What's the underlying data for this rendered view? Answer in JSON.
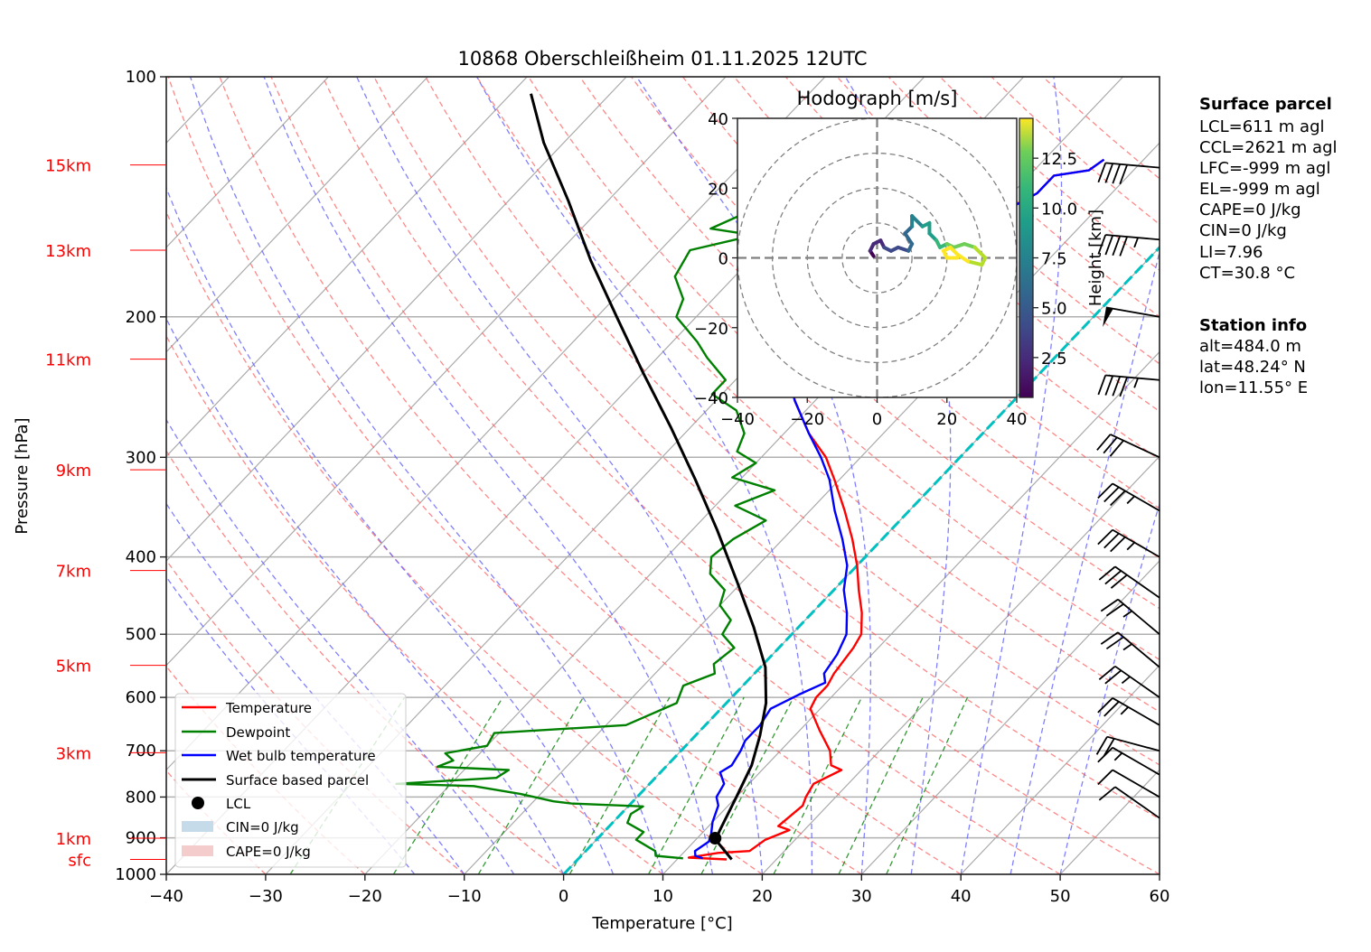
{
  "chart_data": {
    "type": "line",
    "subtype": "skew-t log-p",
    "title": "10868 Oberschleißheim 01.11.2025 12UTC",
    "xlabel": "Temperature [°C]",
    "ylabel": "Pressure [hPa]",
    "xlim": [
      -40,
      60
    ],
    "ylim": [
      1000,
      100
    ],
    "x_ticks": [
      "−40",
      "−30",
      "−20",
      "−10",
      "0",
      "10",
      "20",
      "30",
      "40",
      "50",
      "60"
    ],
    "y_ticks": [
      "100",
      "200",
      "300",
      "400",
      "500",
      "600",
      "700",
      "800",
      "900",
      "1000"
    ],
    "y_tick_values": [
      100,
      200,
      300,
      400,
      500,
      600,
      700,
      800,
      900,
      1000
    ],
    "height_labels": [
      {
        "label": "15km",
        "p": 129
      },
      {
        "label": "13km",
        "p": 165
      },
      {
        "label": "11km",
        "p": 226
      },
      {
        "label": "9km",
        "p": 311
      },
      {
        "label": "7km",
        "p": 416
      },
      {
        "label": "5km",
        "p": 547
      },
      {
        "label": "3km",
        "p": 704
      },
      {
        "label": "1km",
        "p": 901
      },
      {
        "label": "sfc",
        "p": 958
      }
    ],
    "grid": true,
    "series": [
      {
        "name": "Temperature",
        "color": "#ff0000",
        "points": [
          [
            15.0,
            958
          ],
          [
            11.0,
            953
          ],
          [
            13.5,
            940
          ],
          [
            16.5,
            935
          ],
          [
            17.0,
            905
          ],
          [
            18.5,
            880
          ],
          [
            17.0,
            870
          ],
          [
            17.5,
            820
          ],
          [
            17.0,
            800
          ],
          [
            16.5,
            770
          ],
          [
            18.0,
            740
          ],
          [
            16.5,
            730
          ],
          [
            15.0,
            700
          ],
          [
            12.0,
            660
          ],
          [
            9.0,
            620
          ],
          [
            8.5,
            600
          ],
          [
            8.5,
            580
          ],
          [
            8.0,
            560
          ],
          [
            7.5,
            520
          ],
          [
            7.0,
            500
          ],
          [
            5.0,
            470
          ],
          [
            2.5,
            440
          ],
          [
            0.0,
            410
          ],
          [
            -3.0,
            380
          ],
          [
            -6.5,
            350
          ],
          [
            -10.5,
            320
          ],
          [
            -13.5,
            300
          ],
          [
            -17.5,
            280
          ],
          [
            -22,
            255
          ],
          [
            -25.5,
            235
          ],
          [
            -29,
            215
          ],
          [
            -31.5,
            200
          ],
          [
            -35,
            183
          ],
          [
            -37,
            170
          ],
          [
            -33.5,
            163
          ],
          [
            -27.5,
            160
          ],
          [
            -23.5,
            153
          ],
          [
            -19,
            147
          ],
          [
            -17.5,
            140
          ],
          [
            -17.5,
            133
          ],
          [
            -14.5,
            131
          ],
          [
            -14,
            127
          ]
        ]
      },
      {
        "name": "Dewpoint",
        "color": "#008000",
        "points": [
          [
            10.5,
            955
          ],
          [
            7.5,
            948
          ],
          [
            7.0,
            935
          ],
          [
            6.0,
            925
          ],
          [
            4.0,
            905
          ],
          [
            4.0,
            885
          ],
          [
            1.5,
            862
          ],
          [
            1.0,
            840
          ],
          [
            1.5,
            822
          ],
          [
            -6,
            815
          ],
          [
            -8,
            810
          ],
          [
            -12,
            793
          ],
          [
            -17.5,
            775
          ],
          [
            -25.5,
            770
          ],
          [
            -16,
            757
          ],
          [
            -15.5,
            740
          ],
          [
            -23,
            733
          ],
          [
            -22,
            720
          ],
          [
            -23.5,
            705
          ],
          [
            -20,
            690
          ],
          [
            -20.5,
            665
          ],
          [
            -8,
            650
          ],
          [
            -5,
            610
          ],
          [
            -6,
            580
          ],
          [
            -4,
            560
          ],
          [
            -5,
            545
          ],
          [
            -4.5,
            520
          ],
          [
            -7,
            500
          ],
          [
            -7.5,
            480
          ],
          [
            -10,
            460
          ],
          [
            -11,
            440
          ],
          [
            -14,
            420
          ],
          [
            -15.5,
            400
          ],
          [
            -15,
            380
          ],
          [
            -13.5,
            360
          ],
          [
            -18,
            345
          ],
          [
            -15.5,
            330
          ],
          [
            -21,
            318
          ],
          [
            -20,
            305
          ],
          [
            -23,
            295
          ],
          [
            -24,
            280
          ],
          [
            -27,
            262
          ],
          [
            -31,
            250
          ],
          [
            -31,
            240
          ],
          [
            -35,
            225
          ],
          [
            -37.5,
            215
          ],
          [
            -42,
            200
          ],
          [
            -43,
            190
          ],
          [
            -46,
            178
          ],
          [
            -47,
            165
          ],
          [
            -42,
            158
          ],
          [
            -47,
            155
          ],
          [
            -44,
            145
          ],
          [
            -43,
            138
          ],
          [
            -41,
            132
          ],
          [
            -40,
            128
          ]
        ]
      },
      {
        "name": "Wet bulb temperature",
        "color": "#0000ff",
        "points": [
          [
            12.5,
            955
          ],
          [
            11.5,
            948
          ],
          [
            11.0,
            935
          ],
          [
            11.5,
            910
          ],
          [
            11.0,
            890
          ],
          [
            10.0,
            860
          ],
          [
            9.0,
            820
          ],
          [
            8.0,
            800
          ],
          [
            7.5,
            770
          ],
          [
            6.0,
            745
          ],
          [
            6.5,
            730
          ],
          [
            6.0,
            700
          ],
          [
            5.5,
            680
          ],
          [
            5.5,
            650
          ],
          [
            5.0,
            620
          ],
          [
            6.5,
            595
          ],
          [
            8.0,
            575
          ],
          [
            7.0,
            560
          ],
          [
            6.5,
            530
          ],
          [
            5.5,
            500
          ],
          [
            3.5,
            470
          ],
          [
            1.0,
            440
          ],
          [
            -1.0,
            410
          ],
          [
            -4,
            380
          ],
          [
            -7.5,
            350
          ],
          [
            -11,
            320
          ],
          [
            -14,
            300
          ],
          [
            -17.5,
            280
          ],
          [
            -22,
            255
          ],
          [
            -25.5,
            235
          ],
          [
            -29,
            215
          ],
          [
            -31.5,
            200
          ],
          [
            -35,
            183
          ],
          [
            -37,
            170
          ],
          [
            -33.5,
            163
          ],
          [
            -27.5,
            160
          ],
          [
            -23.5,
            153
          ],
          [
            -19,
            147
          ],
          [
            -17.5,
            140
          ],
          [
            -17.5,
            133
          ],
          [
            -14.5,
            131
          ],
          [
            -14,
            127
          ]
        ]
      },
      {
        "name": "Surface based parcel",
        "color": "#000000",
        "points": [
          [
            15.5,
            958
          ],
          [
            12.0,
            905
          ],
          [
            11.5,
            880
          ],
          [
            10.0,
            800
          ],
          [
            8.5,
            730
          ],
          [
            6.5,
            670
          ],
          [
            4.0,
            610
          ],
          [
            0.5,
            550
          ],
          [
            -4.5,
            490
          ],
          [
            -10.5,
            430
          ],
          [
            -17.5,
            370
          ],
          [
            -24.5,
            320
          ],
          [
            -32,
            275
          ],
          [
            -40,
            235
          ],
          [
            -48,
            200
          ],
          [
            -56,
            170
          ],
          [
            -64,
            143
          ],
          [
            -72,
            121
          ],
          [
            -78,
            105
          ]
        ]
      }
    ],
    "lcl_point": {
      "name": "LCL",
      "t": 11.8,
      "p": 901
    },
    "legend": {
      "placement": "lower-left",
      "entries": [
        "Temperature",
        "Dewpoint",
        "Wet bulb temperature",
        "Surface based parcel",
        "LCL",
        "CIN=0 J/kg",
        "CAPE=0 J/kg"
      ],
      "colors": [
        "#ff0000",
        "#008000",
        "#0000ff",
        "#000000",
        "#000000",
        "#c6dbea",
        "#f4cccc"
      ]
    },
    "zero_isotherm_color": "#00c0c0",
    "wind_barbs": [
      {
        "p": 130,
        "dir": 265,
        "speed_kt": 40
      },
      {
        "p": 160,
        "dir": 265,
        "speed_kt": 45
      },
      {
        "p": 200,
        "dir": 260,
        "speed_kt": 50
      },
      {
        "p": 240,
        "dir": 265,
        "speed_kt": 45
      },
      {
        "p": 300,
        "dir": 245,
        "speed_kt": 30
      },
      {
        "p": 350,
        "dir": 240,
        "speed_kt": 35
      },
      {
        "p": 400,
        "dir": 240,
        "speed_kt": 35
      },
      {
        "p": 450,
        "dir": 235,
        "speed_kt": 30
      },
      {
        "p": 500,
        "dir": 230,
        "speed_kt": 25
      },
      {
        "p": 550,
        "dir": 230,
        "speed_kt": 25
      },
      {
        "p": 600,
        "dir": 235,
        "speed_kt": 25
      },
      {
        "p": 650,
        "dir": 240,
        "speed_kt": 25
      },
      {
        "p": 700,
        "dir": 255,
        "speed_kt": 20
      },
      {
        "p": 750,
        "dir": 240,
        "speed_kt": 15
      },
      {
        "p": 800,
        "dir": 240,
        "speed_kt": 10
      },
      {
        "p": 850,
        "dir": 235,
        "speed_kt": 10
      }
    ],
    "hodograph": {
      "title": "Hodograph [m/s]",
      "xlim": [
        -40,
        40
      ],
      "ylim": [
        -40,
        40
      ],
      "x_ticks": [
        "−40",
        "−20",
        "0",
        "20",
        "40"
      ],
      "y_ticks": [
        "40",
        "20",
        "0",
        "−20",
        "−40"
      ],
      "rings": [
        10,
        20,
        30,
        40
      ],
      "colorbar": {
        "label": "Height [km]",
        "ticks": [
          "2.5",
          "5.0",
          "7.5",
          "10.0",
          "12.5"
        ],
        "range": [
          0.5,
          14.5
        ]
      },
      "points": [
        [
          -1,
          0.5,
          0.5
        ],
        [
          -2,
          2,
          1
        ],
        [
          -1,
          4,
          1.5
        ],
        [
          1,
          5,
          2
        ],
        [
          2,
          3,
          2.5
        ],
        [
          4,
          2,
          3
        ],
        [
          6,
          3,
          3.5
        ],
        [
          9,
          2,
          4
        ],
        [
          10,
          4,
          4.5
        ],
        [
          8,
          7,
          5
        ],
        [
          10,
          9,
          5.5
        ],
        [
          10,
          12,
          6
        ],
        [
          13,
          9,
          7
        ],
        [
          15,
          10,
          7.5
        ],
        [
          15,
          7,
          8
        ],
        [
          17,
          5,
          9
        ],
        [
          18,
          3,
          10
        ],
        [
          20,
          4,
          10.5
        ],
        [
          22,
          3,
          11
        ],
        [
          25,
          4,
          11.5
        ],
        [
          28,
          3,
          12
        ],
        [
          31,
          0,
          12.5
        ],
        [
          30,
          -2,
          13
        ],
        [
          26,
          -1,
          13.5
        ],
        [
          23,
          1,
          14
        ],
        [
          21,
          3,
          14
        ],
        [
          19,
          2,
          14.5
        ],
        [
          20,
          0,
          14.5
        ],
        [
          23,
          0,
          14.5
        ]
      ]
    }
  },
  "info": {
    "surface_parcel_title": "Surface parcel",
    "surface_parcel_lines": [
      "LCL=611 m agl",
      "CCL=2621 m agl",
      "LFC=-999 m agl",
      "EL=-999 m agl",
      "CAPE=0 J/kg",
      "CIN=0 J/kg",
      "LI=7.96",
      "CT=30.8 °C"
    ],
    "station_title": "Station info",
    "station_lines": [
      "alt=484.0 m",
      "lat=48.24° N",
      "lon=11.55° E"
    ]
  }
}
